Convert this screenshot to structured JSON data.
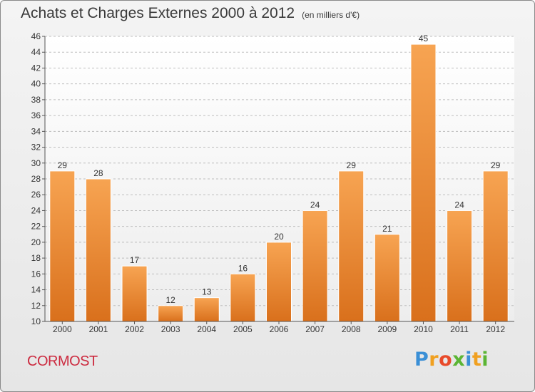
{
  "header": {
    "title": "Achats et Charges Externes 2000 à 2012",
    "subtitle": "(en milliers d'€)"
  },
  "footer": {
    "commune": "CORMOST",
    "logo_text": "Proxiti"
  },
  "colors": {
    "bar_light": "#f7a452",
    "bar_dark": "#d9701c",
    "commune": "#cc2a3f",
    "grid": "#bdbdbd"
  },
  "chart_data": {
    "type": "bar",
    "title": "Achats et Charges Externes 2000 à 2012",
    "subtitle": "(en milliers d'€)",
    "categories": [
      "2000",
      "2001",
      "2002",
      "2003",
      "2004",
      "2005",
      "2006",
      "2007",
      "2008",
      "2009",
      "2010",
      "2011",
      "2012"
    ],
    "values": [
      29,
      28,
      17,
      12,
      13,
      16,
      20,
      24,
      29,
      21,
      45,
      24,
      29
    ],
    "ylim": [
      10,
      46
    ],
    "yticks": [
      10,
      12,
      14,
      16,
      18,
      20,
      22,
      24,
      26,
      28,
      30,
      32,
      34,
      36,
      38,
      40,
      42,
      44,
      46
    ],
    "xlabel": "",
    "ylabel": "",
    "grid": true,
    "legend": "none"
  }
}
